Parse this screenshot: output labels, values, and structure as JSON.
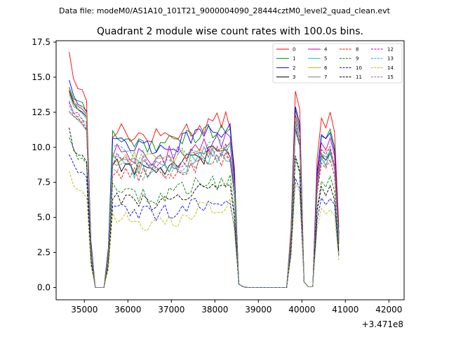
{
  "chart_data": {
    "type": "line",
    "suptitle": "Data file: modeM0/AS1A10_101T21_9000004090_28444cztM0_level2_quad_clean.evt",
    "title": "Quadrant 2 module wise count rates with 100.0s bins.",
    "xlabel": "",
    "ylabel": "",
    "x_offset_label": "+3.471e8",
    "xlim": [
      34350,
      42350
    ],
    "ylim": [
      -0.875,
      17.6
    ],
    "x_ticks": [
      35000,
      36000,
      37000,
      38000,
      39000,
      40000,
      41000,
      42000
    ],
    "x_tick_labels": [
      "35000",
      "36000",
      "37000",
      "38000",
      "39000",
      "40000",
      "41000",
      "42000"
    ],
    "y_ticks": [
      0,
      2.5,
      5,
      7.5,
      10,
      12.5,
      15,
      17.5
    ],
    "y_tick_labels": [
      "0.0",
      "2.5",
      "5.0",
      "7.5",
      "10.0",
      "12.5",
      "15.0",
      "17.5"
    ],
    "grid": false,
    "legend_position": "top-right",
    "x_start": 34650,
    "x_step": 100,
    "series": [
      {
        "name": "0",
        "color": "#ff0000",
        "dash": "solid",
        "start": 16.8,
        "early": 14.2,
        "plateau": 11.3,
        "flare1": 14.0,
        "flare2": 12.2
      },
      {
        "name": "1",
        "color": "#008000",
        "dash": "solid",
        "start": 14.3,
        "early": 13.2,
        "plateau": 10.8,
        "flare1": 12.7,
        "flare2": 10.9
      },
      {
        "name": "2",
        "color": "#0000ff",
        "dash": "solid",
        "start": 14.8,
        "early": 13.3,
        "plateau": 10.6,
        "flare1": 12.9,
        "flare2": 11.0
      },
      {
        "name": "3",
        "color": "#000000",
        "dash": "solid",
        "start": 14.0,
        "early": 12.8,
        "plateau": 9.0,
        "flare1": 11.3,
        "flare2": 9.5
      },
      {
        "name": "4",
        "color": "#bf00bf",
        "dash": "solid",
        "start": 14.1,
        "early": 12.9,
        "plateau": 9.9,
        "flare1": 12.3,
        "flare2": 10.4
      },
      {
        "name": "5",
        "color": "#00bfbf",
        "dash": "solid",
        "start": 13.8,
        "early": 12.5,
        "plateau": 8.9,
        "flare1": 11.9,
        "flare2": 9.3
      },
      {
        "name": "6",
        "color": "#bfbf00",
        "dash": "solid",
        "start": 14.2,
        "early": 12.9,
        "plateau": 9.6,
        "flare1": 12.1,
        "flare2": 9.9
      },
      {
        "name": "7",
        "color": "#808080",
        "dash": "solid",
        "start": 12.5,
        "early": 12.0,
        "plateau": 9.2,
        "flare1": 11.5,
        "flare2": 9.6
      },
      {
        "name": "8",
        "color": "#ff0000",
        "dash": "dashed",
        "start": 13.2,
        "early": 12.0,
        "plateau": 8.6,
        "flare1": 11.2,
        "flare2": 8.9
      },
      {
        "name": "9",
        "color": "#008000",
        "dash": "dashed",
        "start": 10.7,
        "early": 9.4,
        "plateau": 7.1,
        "flare1": 9.2,
        "flare2": 7.6
      },
      {
        "name": "10",
        "color": "#0000ff",
        "dash": "dashed",
        "start": 9.5,
        "early": 8.3,
        "plateau": 5.8,
        "flare1": 7.8,
        "flare2": 6.4
      },
      {
        "name": "11",
        "color": "#000000",
        "dash": "dashed",
        "start": 11.4,
        "early": 9.4,
        "plateau": 6.6,
        "flare1": 9.4,
        "flare2": 7.2
      },
      {
        "name": "12",
        "color": "#bf00bf",
        "dash": "dashed",
        "start": 13.3,
        "early": 12.3,
        "plateau": 9.3,
        "flare1": 11.8,
        "flare2": 9.8
      },
      {
        "name": "13",
        "color": "#00bfbf",
        "dash": "dashed",
        "start": 13.0,
        "early": 12.1,
        "plateau": 9.7,
        "flare1": 11.6,
        "flare2": 9.5
      },
      {
        "name": "14",
        "color": "#bfbf00",
        "dash": "dashed",
        "start": 8.3,
        "early": 7.0,
        "plateau": 5.3,
        "flare1": 7.5,
        "flare2": 5.6
      },
      {
        "name": "15",
        "color": "#808080",
        "dash": "dashed",
        "start": 12.6,
        "early": 12.1,
        "plateau": 8.8,
        "flare1": 11.2,
        "flare2": 9.4
      }
    ]
  }
}
